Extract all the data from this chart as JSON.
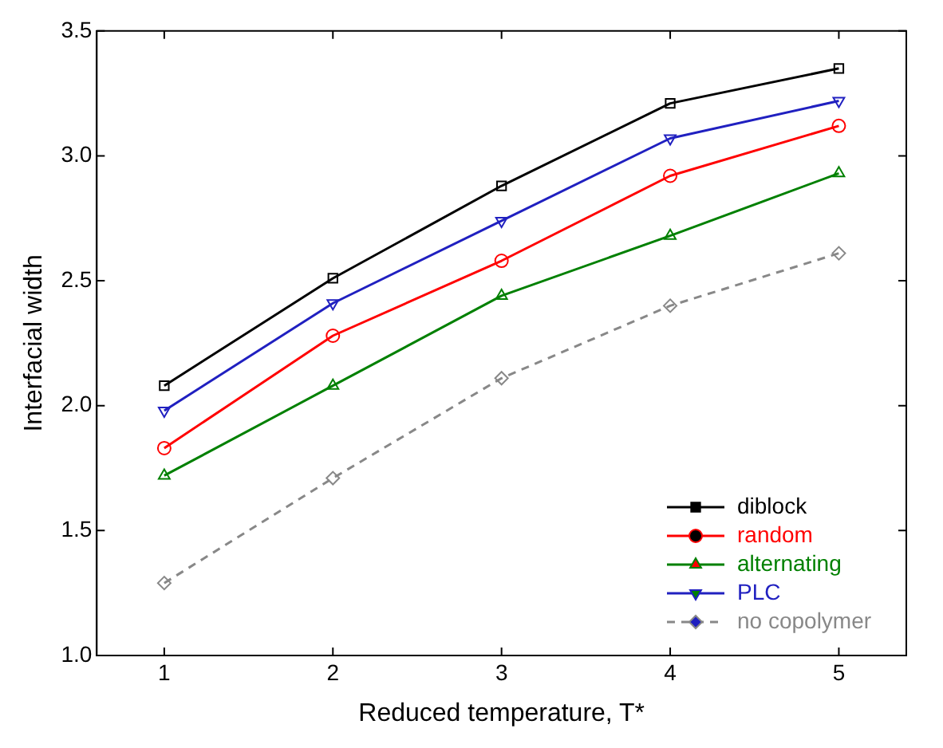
{
  "chart_data": {
    "type": "line",
    "xlabel": "Reduced temperature, T*",
    "ylabel": "Interfacial width",
    "x": [
      1,
      2,
      3,
      4,
      5
    ],
    "xlim": [
      0.6,
      5.4
    ],
    "xticks": [
      1,
      2,
      3,
      4,
      5
    ],
    "ylim": [
      1.0,
      3.5
    ],
    "yticks": [
      {
        "value": 1,
        "label": "1.0"
      },
      1.5,
      {
        "value": 2,
        "label": "2.0"
      },
      2.5,
      {
        "value": 3,
        "label": "3.0"
      },
      3.5
    ],
    "grid": false,
    "legend": "bottom right",
    "series": [
      {
        "name": "diblock",
        "color": "#000000",
        "marker": "square",
        "line_style": "solid",
        "values": [
          2.08,
          2.51,
          2.88,
          3.21,
          3.35
        ]
      },
      {
        "name": "random",
        "color": "#ff0000",
        "marker": "circle",
        "line_style": "solid",
        "values": [
          1.83,
          2.28,
          2.58,
          2.92,
          3.12
        ]
      },
      {
        "name": "alternating",
        "color": "#008000",
        "marker": "triangle",
        "line_style": "solid",
        "values": [
          1.72,
          2.08,
          2.44,
          2.68,
          2.93
        ]
      },
      {
        "name": "PLC",
        "color": "#2020c0",
        "marker": "triangle-down",
        "line_style": "solid",
        "values": [
          1.98,
          2.41,
          2.74,
          3.07,
          3.22
        ]
      },
      {
        "name": "no copolymer",
        "color": "#888888",
        "marker": "diamond",
        "line_style": "dashed",
        "values": [
          1.29,
          1.71,
          2.11,
          2.4,
          2.61
        ]
      }
    ]
  }
}
